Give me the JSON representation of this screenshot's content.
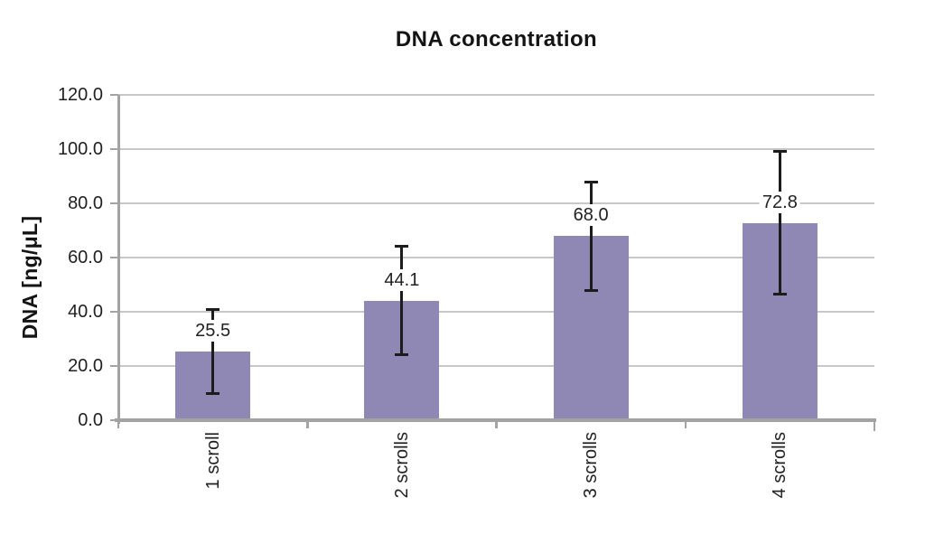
{
  "chart_data": {
    "type": "bar",
    "title": "DNA concentration",
    "ylabel": "DNA [ng/μL]",
    "xlabel": "",
    "categories": [
      "1 scroll",
      "2 scrolls",
      "3 scrolls",
      "4 scrolls"
    ],
    "values": [
      25.5,
      44.1,
      68.0,
      72.8
    ],
    "value_labels": [
      "25.5",
      "44.1",
      "68.0",
      "72.8"
    ],
    "errors": [
      15.5,
      20.0,
      20.0,
      26.4
    ],
    "ylim": [
      0,
      120
    ],
    "ytick_step": 20,
    "ytick_labels": [
      "0.0",
      "20.0",
      "40.0",
      "60.0",
      "80.0",
      "100.0",
      "120.0"
    ],
    "grid": "horizontal-only",
    "legend": "none",
    "colors": {
      "bar": "#8F88B5",
      "grid": "#C8C8C8",
      "axis": "#A3A3A3",
      "error_bar": "#1C1C1C",
      "text": "#212121"
    }
  }
}
